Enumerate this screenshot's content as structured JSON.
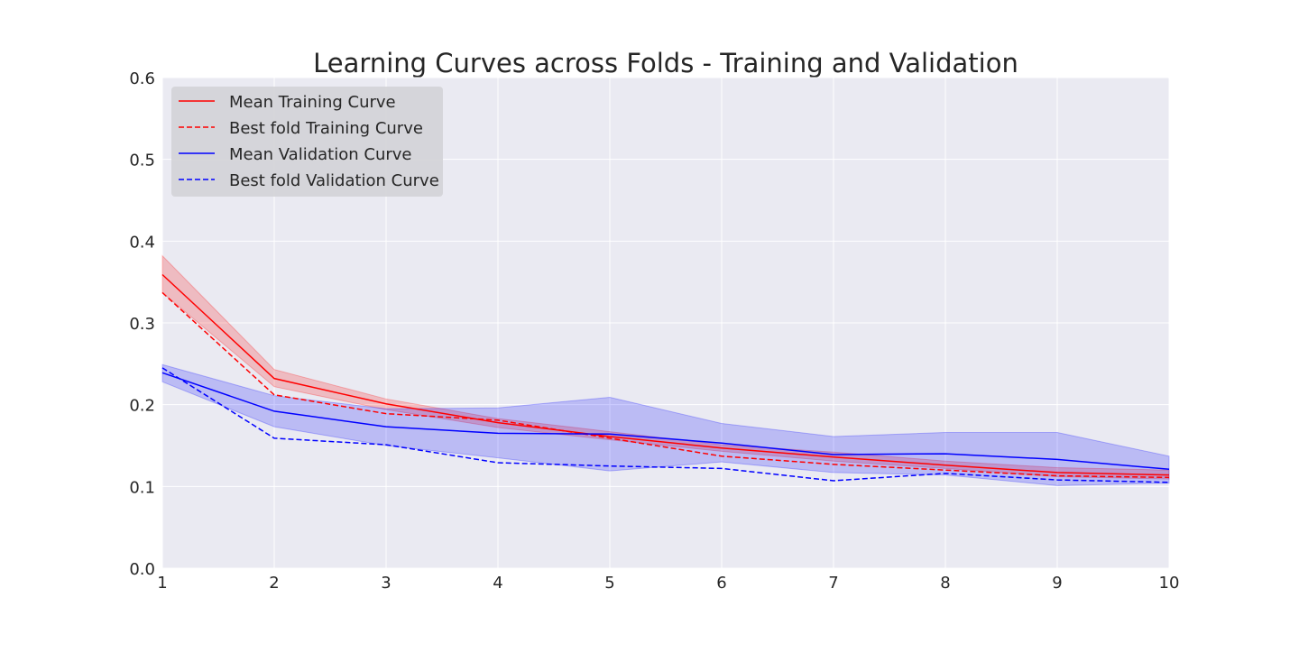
{
  "chart_data": {
    "type": "line",
    "title": "Learning Curves across Folds - Training and Validation",
    "xlabel": "",
    "ylabel": "",
    "xlim": [
      1,
      10
    ],
    "ylim": [
      0.0,
      0.6
    ],
    "x": [
      1,
      2,
      3,
      4,
      5,
      6,
      7,
      8,
      9,
      10
    ],
    "xticks": [
      "1",
      "2",
      "3",
      "4",
      "5",
      "6",
      "7",
      "8",
      "9",
      "10"
    ],
    "yticks": [
      "0.0",
      "0.1",
      "0.2",
      "0.3",
      "0.4",
      "0.5",
      "0.6"
    ],
    "grid": true,
    "legend_position": "top-left",
    "series": [
      {
        "name": "Mean Training Curve",
        "color": "#ff0000",
        "style": "solid",
        "values": [
          0.359,
          0.232,
          0.201,
          0.178,
          0.161,
          0.147,
          0.136,
          0.126,
          0.117,
          0.114
        ],
        "band_lower": [
          0.337,
          0.222,
          0.194,
          0.172,
          0.157,
          0.143,
          0.131,
          0.122,
          0.112,
          0.109
        ],
        "band_upper": [
          0.382,
          0.243,
          0.207,
          0.183,
          0.167,
          0.151,
          0.142,
          0.131,
          0.123,
          0.12
        ],
        "band_color": "#ff0000"
      },
      {
        "name": "Best fold Training Curve",
        "color": "#ff0000",
        "style": "dashed",
        "values": [
          0.337,
          0.212,
          0.189,
          0.181,
          0.159,
          0.137,
          0.127,
          0.12,
          0.113,
          0.111
        ]
      },
      {
        "name": "Mean Validation Curve",
        "color": "#0000ff",
        "style": "solid",
        "values": [
          0.239,
          0.192,
          0.173,
          0.165,
          0.164,
          0.153,
          0.139,
          0.14,
          0.133,
          0.121
        ],
        "band_lower": [
          0.228,
          0.173,
          0.15,
          0.135,
          0.119,
          0.13,
          0.117,
          0.114,
          0.101,
          0.104
        ],
        "band_upper": [
          0.249,
          0.211,
          0.195,
          0.196,
          0.209,
          0.177,
          0.161,
          0.166,
          0.166,
          0.137
        ],
        "band_color": "#0000ff"
      },
      {
        "name": "Best fold Validation Curve",
        "color": "#0000ff",
        "style": "dashed",
        "values": [
          0.245,
          0.159,
          0.151,
          0.129,
          0.125,
          0.122,
          0.107,
          0.116,
          0.108,
          0.105
        ]
      }
    ]
  }
}
